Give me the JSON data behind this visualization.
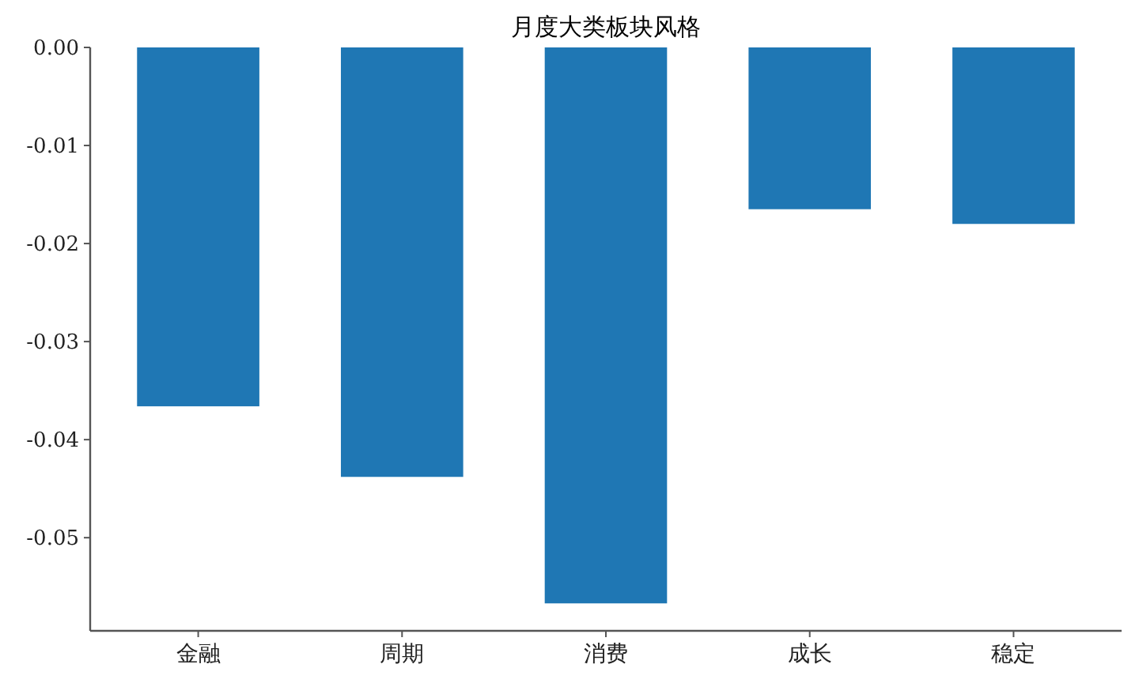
{
  "chart_data": {
    "type": "bar",
    "title": "月度大类板块风格",
    "categories": [
      "金融",
      "周期",
      "消费",
      "成长",
      "稳定"
    ],
    "values": [
      -0.0366,
      -0.0438,
      -0.0567,
      -0.0165,
      -0.018
    ],
    "color": "#1f77b4",
    "ylim": [
      -0.0595,
      0
    ],
    "yticks": [
      {
        "value": 0,
        "label": "0.00"
      },
      {
        "value": -0.01,
        "label": "-0.01"
      },
      {
        "value": -0.02,
        "label": "-0.02"
      },
      {
        "value": -0.03,
        "label": "-0.03"
      },
      {
        "value": -0.04,
        "label": "-0.04"
      },
      {
        "value": -0.05,
        "label": "-0.05"
      }
    ]
  }
}
